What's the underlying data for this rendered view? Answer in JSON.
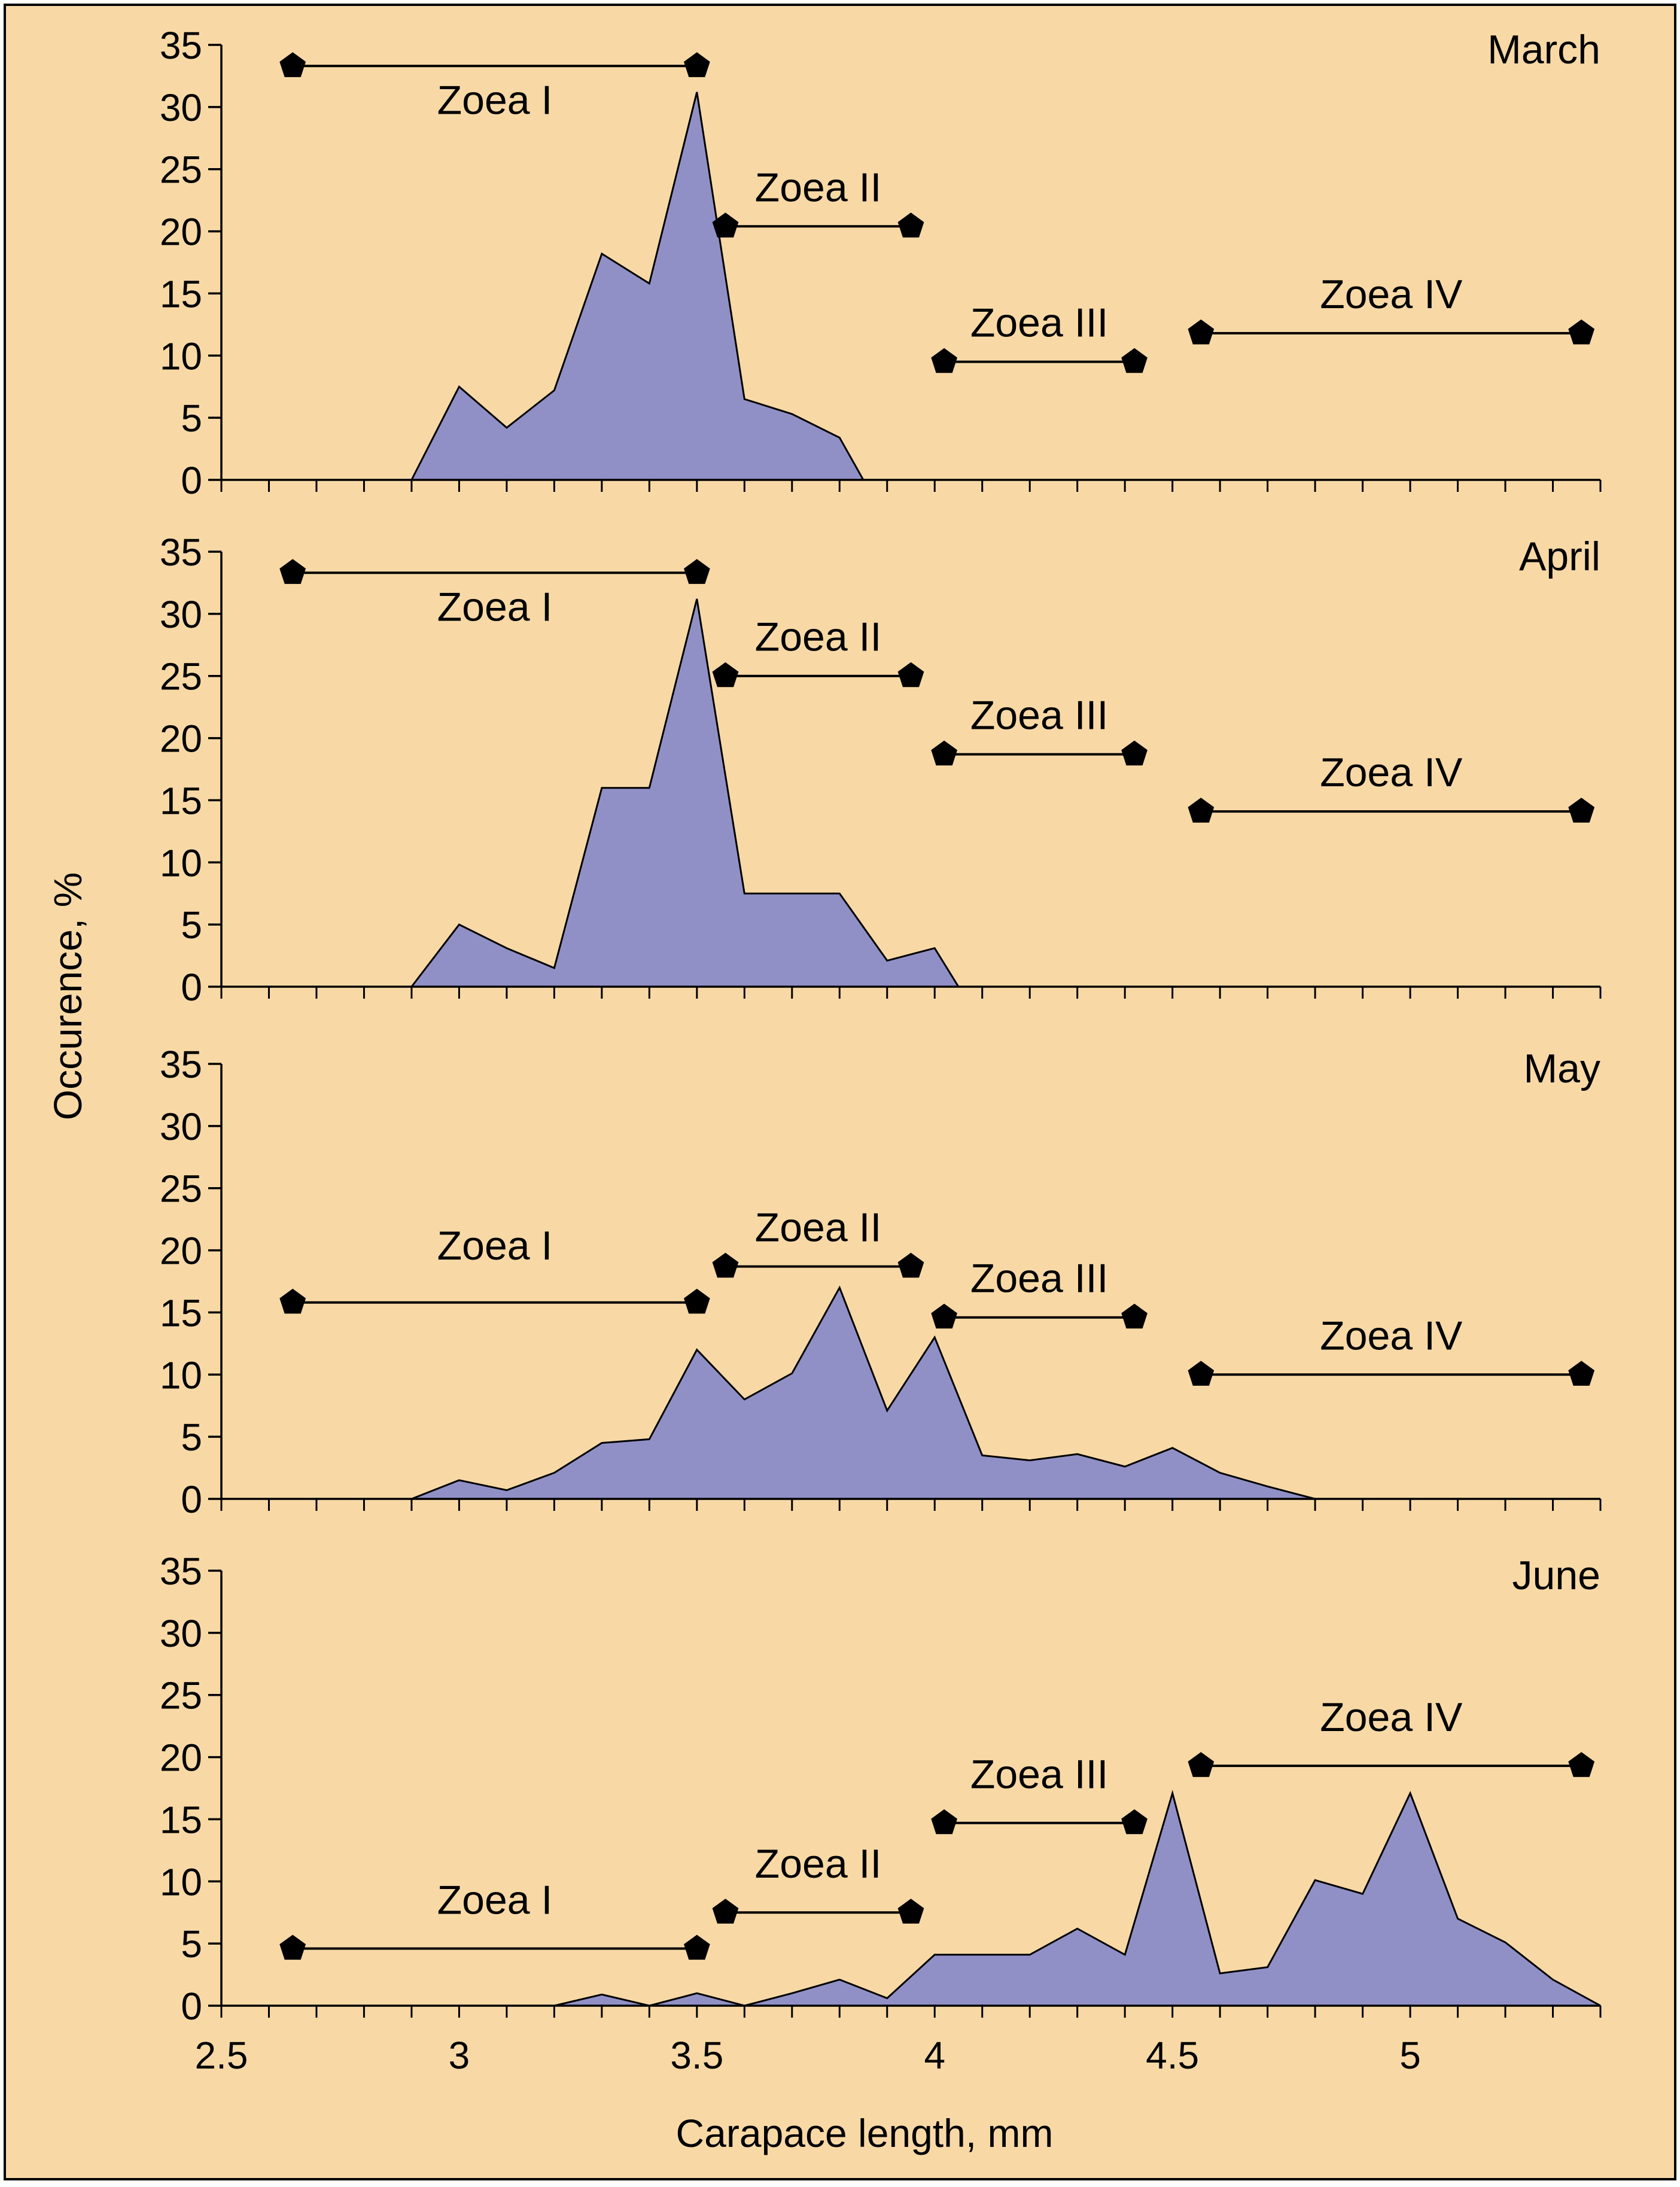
{
  "colors": {
    "background": "#F8D9A6",
    "area_fill": "#9190C6",
    "line": "#000000",
    "marker": "#000000"
  },
  "chart_data": {
    "type": "area",
    "xlabel": "Carapace length, mm",
    "ylabel": "Occurence, %",
    "xlim": [
      2.5,
      5.4
    ],
    "ylim": [
      0,
      35
    ],
    "x_ticks": [
      "2.5",
      "3",
      "3.5",
      "4",
      "4.5",
      "5"
    ],
    "y_ticks": [
      "0",
      "5",
      "10",
      "15",
      "20",
      "25",
      "30",
      "35"
    ],
    "panels": [
      {
        "month": "March",
        "series": {
          "x": [
            2.9,
            3.0,
            3.1,
            3.2,
            3.3,
            3.4,
            3.5,
            3.6,
            3.7,
            3.8,
            3.85
          ],
          "y": [
            0,
            7.5,
            4.2,
            7.2,
            18.2,
            15.8,
            31.2,
            6.5,
            5.3,
            3.4,
            0
          ]
        },
        "stages": [
          {
            "label": "Zoea I",
            "x_start": 2.65,
            "x_end": 3.5,
            "y": 33.3
          },
          {
            "label": "Zoea II",
            "x_start": 3.56,
            "x_end": 3.95,
            "y": 20.4
          },
          {
            "label": "Zoea III",
            "x_start": 4.02,
            "x_end": 4.42,
            "y": 9.5
          },
          {
            "label": "Zoea IV",
            "x_start": 4.56,
            "x_end": 5.36,
            "y": 11.8
          }
        ]
      },
      {
        "month": "April",
        "series": {
          "x": [
            2.9,
            3.0,
            3.1,
            3.2,
            3.3,
            3.4,
            3.5,
            3.6,
            3.7,
            3.8,
            3.9,
            4.0,
            4.05
          ],
          "y": [
            0,
            5.0,
            3.1,
            1.5,
            16.0,
            16.0,
            31.2,
            7.5,
            7.5,
            7.5,
            2.1,
            3.1,
            0
          ]
        },
        "stages": [
          {
            "label": "Zoea I",
            "x_start": 2.65,
            "x_end": 3.5,
            "y": 33.3
          },
          {
            "label": "Zoea II",
            "x_start": 3.56,
            "x_end": 3.95,
            "y": 25.0
          },
          {
            "label": "Zoea III",
            "x_start": 4.02,
            "x_end": 4.42,
            "y": 18.7
          },
          {
            "label": "Zoea IV",
            "x_start": 4.56,
            "x_end": 5.36,
            "y": 14.1
          }
        ]
      },
      {
        "month": "May",
        "series": {
          "x": [
            2.9,
            3.0,
            3.1,
            3.2,
            3.3,
            3.4,
            3.5,
            3.6,
            3.7,
            3.8,
            3.9,
            4.0,
            4.1,
            4.2,
            4.3,
            4.4,
            4.5,
            4.6,
            4.7,
            4.8
          ],
          "y": [
            0,
            1.5,
            0.7,
            2.1,
            4.5,
            4.8,
            12.0,
            8.0,
            10.1,
            17.0,
            7.1,
            13.0,
            3.5,
            3.1,
            3.6,
            2.6,
            4.1,
            2.1,
            1.0,
            0
          ]
        },
        "stages": [
          {
            "label": "Zoea I",
            "x_start": 2.65,
            "x_end": 3.5,
            "y": 15.8
          },
          {
            "label": "Zoea II",
            "x_start": 3.56,
            "x_end": 3.95,
            "y": 18.7
          },
          {
            "label": "Zoea III",
            "x_start": 4.02,
            "x_end": 4.42,
            "y": 14.6
          },
          {
            "label": "Zoea IV",
            "x_start": 4.56,
            "x_end": 5.36,
            "y": 10.0
          }
        ]
      },
      {
        "month": "June",
        "series": {
          "x": [
            3.2,
            3.3,
            3.4,
            3.5,
            3.6,
            3.7,
            3.8,
            3.9,
            4.0,
            4.1,
            4.2,
            4.3,
            4.4,
            4.5,
            4.6,
            4.7,
            4.8,
            4.9,
            5.0,
            5.1,
            5.2,
            5.3,
            5.4
          ],
          "y": [
            0,
            0.9,
            0,
            1.0,
            0,
            1.0,
            2.1,
            0.6,
            4.1,
            4.1,
            4.1,
            6.2,
            4.1,
            17.1,
            2.6,
            3.1,
            10.1,
            9.0,
            17.1,
            7.0,
            5.1,
            2.1,
            0
          ]
        },
        "stages": [
          {
            "label": "Zoea I",
            "x_start": 2.65,
            "x_end": 3.5,
            "y": 4.6
          },
          {
            "label": "Zoea II",
            "x_start": 3.56,
            "x_end": 3.95,
            "y": 7.5
          },
          {
            "label": "Zoea III",
            "x_start": 4.02,
            "x_end": 4.42,
            "y": 14.7
          },
          {
            "label": "Zoea IV",
            "x_start": 4.56,
            "x_end": 5.36,
            "y": 19.3
          }
        ]
      }
    ]
  }
}
